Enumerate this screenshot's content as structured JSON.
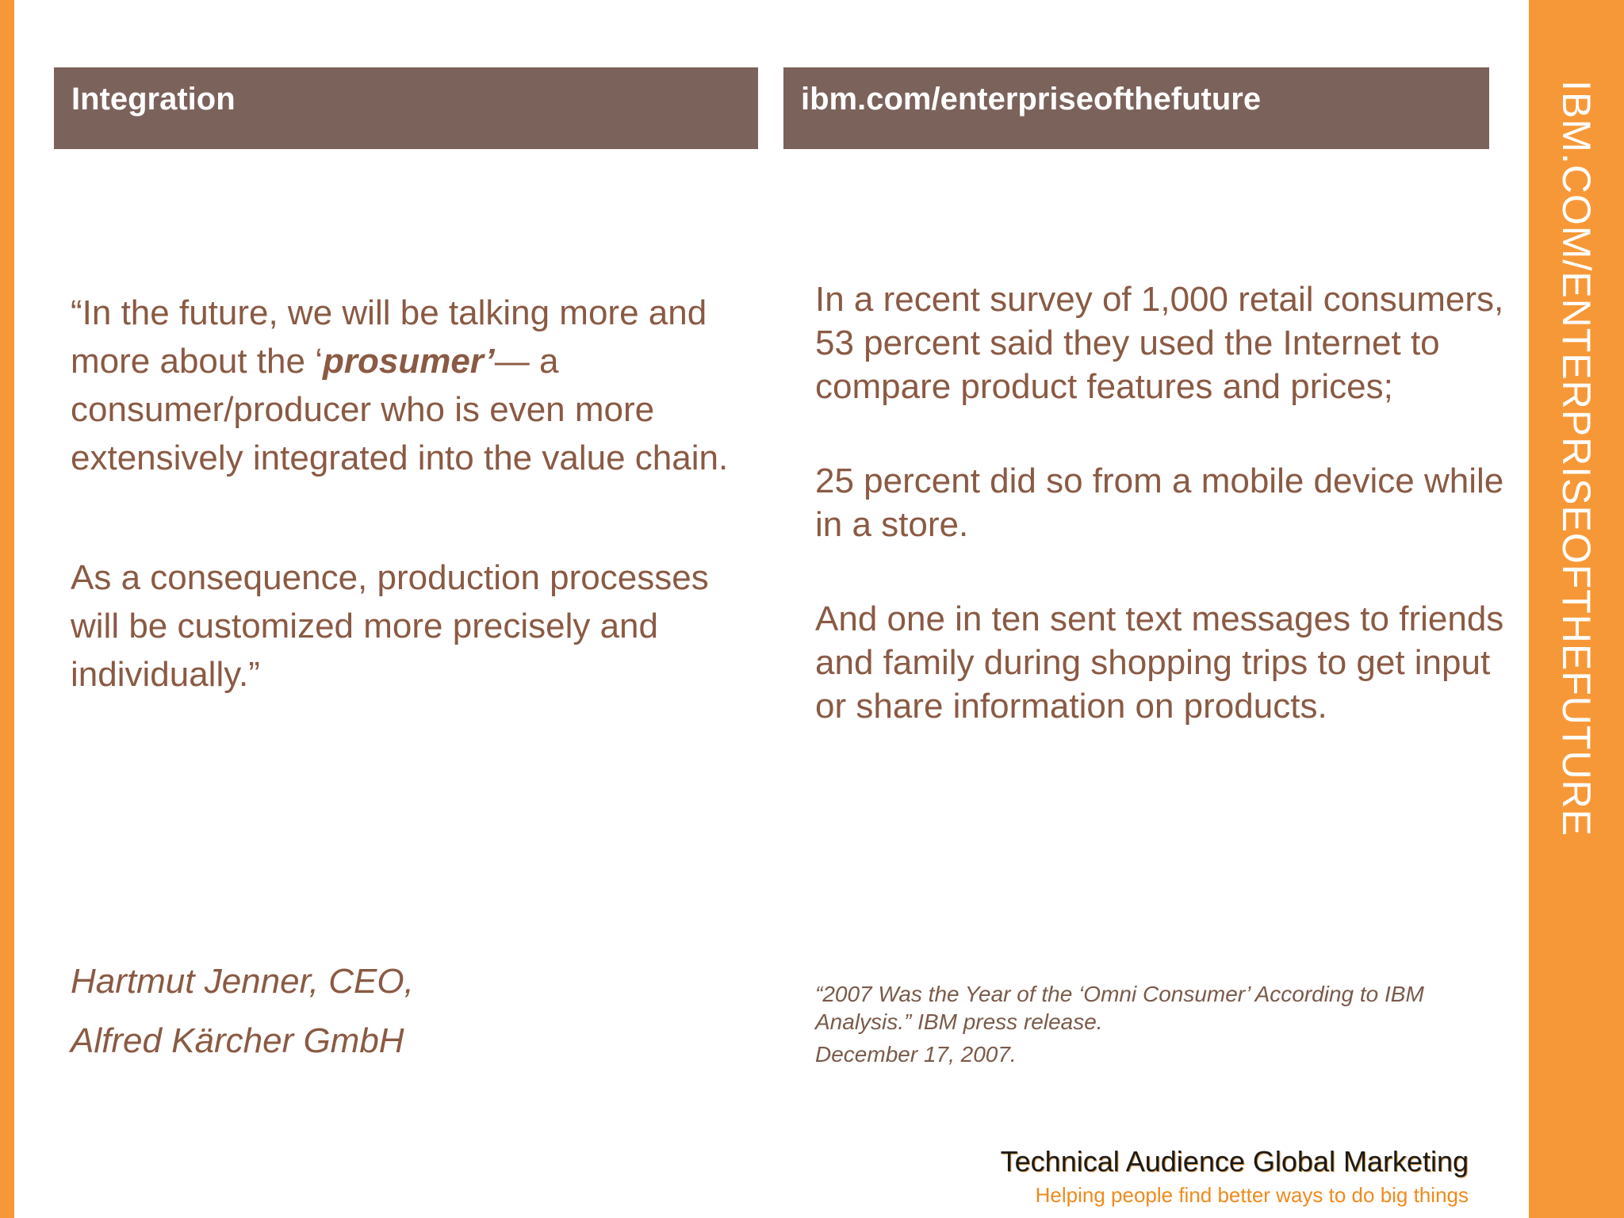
{
  "header": {
    "left_title": "Integration",
    "right_title": "ibm.com/enterpriseofthefuture"
  },
  "sidebar_vertical_title": "IBM.COM/ENTERPRISEOFTHEFUTURE",
  "quote": {
    "part1_before": "“In the future, we will be talking more and more about the ‘",
    "emphasis": "prosumer’",
    "part1_after": "— a consumer/producer who is even more extensively integrated into the value chain.",
    "paragraph2": "As a consequence, production processes will be customized more precisely and individually.”"
  },
  "attribution": {
    "line1": "Hartmut Jenner, CEO,",
    "line2": "Alfred Kärcher GmbH"
  },
  "stats": {
    "paragraph1": "In a recent survey of 1,000 retail consumers, 53 percent said they used the Internet to compare product features and prices;",
    "paragraph2": "25 percent did so from a mobile device while in a store.",
    "paragraph3": "And one in ten sent text messages to friends and family during shopping trips to get input or share information on products."
  },
  "source": {
    "citation": "“2007 Was the Year of the ‘Omni Consumer’ According to IBM Analysis.” IBM press release.",
    "date": "December 17, 2007."
  },
  "footer": {
    "title": "Technical Audience Global Marketing",
    "tagline": "Helping people find better ways to do big things"
  },
  "colors": {
    "accent_orange": "#f79838",
    "header_brown": "#7b625b",
    "body_text": "#8a5a44"
  }
}
